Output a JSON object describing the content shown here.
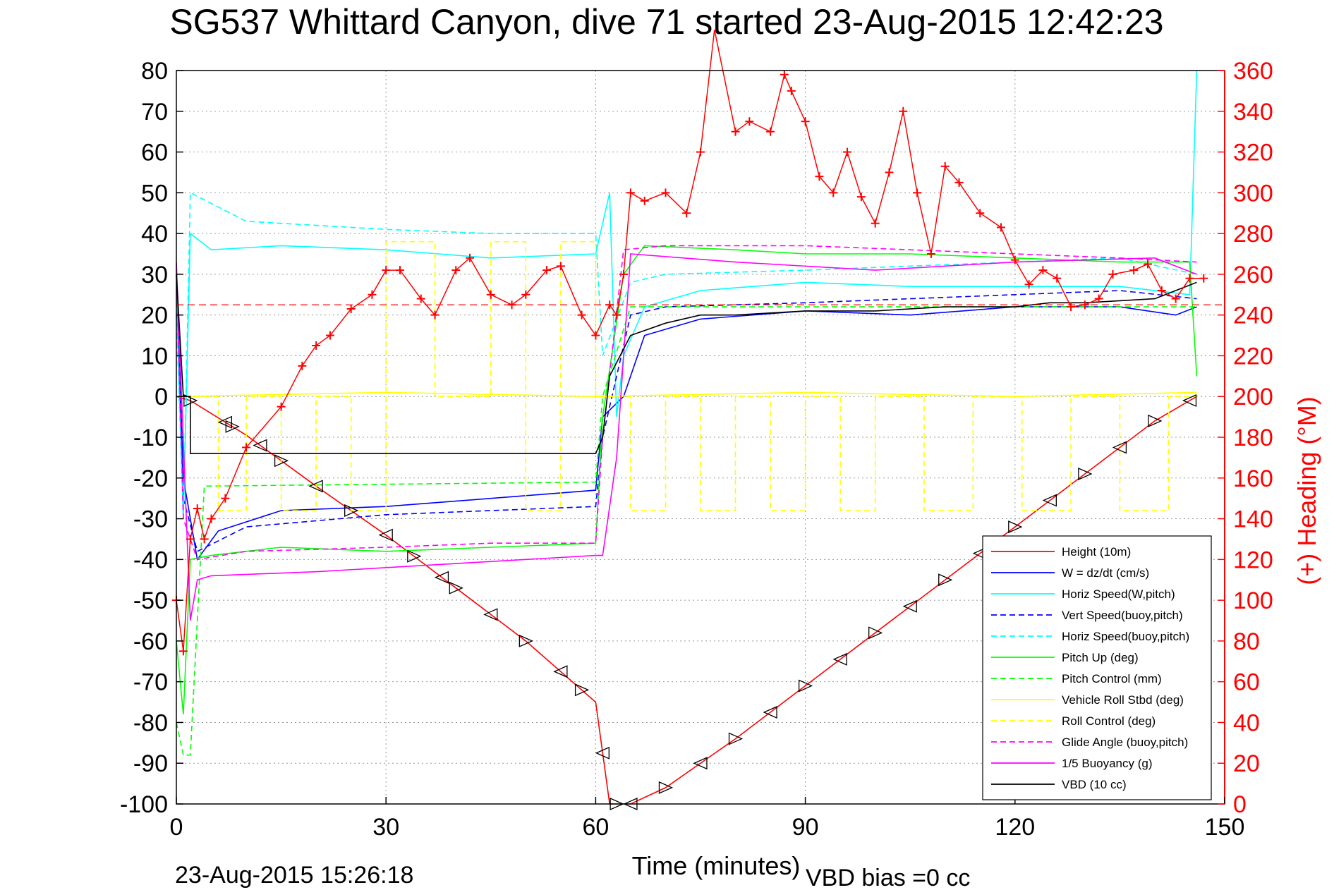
{
  "chart_data": {
    "type": "line",
    "title": "SG537 Whittard Canyon, dive 71 started 23-Aug-2015 12:42:23",
    "footer_left": "23-Aug-2015 15:26:18",
    "footer_right": "VBD bias =0 cc",
    "xlabel": "Time (minutes)",
    "ylabel_right": "(+) Heading (°M)",
    "xlim": [
      0,
      150
    ],
    "ylim": [
      -100,
      80
    ],
    "ylim_right": [
      0,
      360
    ],
    "x_ticks": [
      "0",
      "30",
      "60",
      "90",
      "120",
      "150"
    ],
    "y_ticks": [
      "80",
      "70",
      "60",
      "50",
      "40",
      "30",
      "20",
      "10",
      "0",
      "-10",
      "-20",
      "-30",
      "-40",
      "-50",
      "-60",
      "-70",
      "-80",
      "-90",
      "-100"
    ],
    "y_ticks_right": [
      "360",
      "340",
      "320",
      "300",
      "280",
      "260",
      "240",
      "220",
      "200",
      "180",
      "160",
      "140",
      "120",
      "100",
      "80",
      "60",
      "40",
      "20",
      "0"
    ],
    "grid": true,
    "legend_position": "bottom-right",
    "legend": [
      {
        "label": "Height (10m)",
        "color": "#ff0000",
        "dash": false
      },
      {
        "label": "W = dz/dt (cm/s)",
        "color": "#0000ff",
        "dash": false
      },
      {
        "label": "Horiz Speed(W,pitch)",
        "color": "#00ffff",
        "dash": false
      },
      {
        "label": "Vert Speed(buoy,pitch)",
        "color": "#0000ff",
        "dash": true
      },
      {
        "label": "Horiz Speed(buoy,pitch)",
        "color": "#00ffff",
        "dash": true
      },
      {
        "label": "Pitch Up (deg)",
        "color": "#00ff00",
        "dash": false
      },
      {
        "label": "Pitch Control (mm)",
        "color": "#00ff00",
        "dash": true
      },
      {
        "label": "Vehicle Roll Stbd (deg)",
        "color": "#ffff00",
        "dash": false
      },
      {
        "label": "Roll Control (deg)",
        "color": "#ffff00",
        "dash": true
      },
      {
        "label": "Glide Angle (buoy,pitch)",
        "color": "#ff00ff",
        "dash": true
      },
      {
        "label": "1/5 Buoyancy (g)",
        "color": "#ff00ff",
        "dash": false
      },
      {
        "label": "VBD (10 cc)",
        "color": "#000000",
        "dash": false
      }
    ],
    "series": [
      {
        "name": "Height (10m)",
        "color": "#ff0000",
        "x": [
          0,
          2,
          10,
          20,
          30,
          40,
          50,
          60,
          62,
          65,
          70,
          80,
          90,
          100,
          110,
          120,
          130,
          140,
          146
        ],
        "y": [
          0,
          -1,
          -9.5,
          -22,
          -34,
          -47,
          -60,
          -75,
          -100,
          -100,
          -96,
          -84,
          -71,
          -58,
          -45,
          -32,
          -19,
          -6,
          0
        ]
      },
      {
        "name": "W = dz/dt (cm/s)",
        "color": "#0000ff",
        "x": [
          0,
          1,
          3,
          6,
          15,
          30,
          45,
          60,
          61,
          64,
          67,
          75,
          90,
          105,
          120,
          135,
          143,
          146
        ],
        "y": [
          30,
          -20,
          -40,
          -33,
          -28,
          -27,
          -25,
          -23,
          -5,
          0,
          15,
          19,
          21,
          20,
          22,
          22,
          20,
          22
        ]
      },
      {
        "name": "Horiz Speed(W,pitch)",
        "color": "#00ffff",
        "x": [
          0,
          1,
          2,
          5,
          15,
          30,
          45,
          60,
          62,
          63,
          64,
          67,
          75,
          90,
          105,
          120,
          135,
          145,
          146
        ],
        "y": [
          25,
          -30,
          40,
          36,
          37,
          36,
          34,
          35,
          50,
          -5,
          10,
          22,
          26,
          28,
          27,
          27,
          27,
          25,
          80
        ]
      },
      {
        "name": "Vert Speed(buoy,pitch)",
        "color": "#0000ff",
        "dash": true,
        "x": [
          0,
          1,
          3,
          10,
          30,
          45,
          60,
          61,
          65,
          70,
          90,
          105,
          120,
          135,
          146
        ],
        "y": [
          20,
          -25,
          -38,
          -32,
          -29,
          -28,
          -27,
          -10,
          20,
          22,
          23,
          24,
          25,
          26,
          24
        ]
      },
      {
        "name": "Horiz Speed(buoy,pitch)",
        "color": "#00ffff",
        "dash": true,
        "x": [
          0,
          1,
          2,
          10,
          30,
          45,
          60,
          61,
          65,
          70,
          90,
          105,
          120,
          135,
          146
        ],
        "y": [
          20,
          -30,
          50,
          43,
          41,
          40,
          40,
          10,
          28,
          30,
          31,
          32,
          33,
          34,
          30
        ]
      },
      {
        "name": "Pitch Up (deg)",
        "color": "#00ff00",
        "x": [
          0,
          1,
          2,
          5,
          15,
          30,
          45,
          60,
          61,
          64,
          67,
          80,
          90,
          105,
          120,
          135,
          145,
          146
        ],
        "y": [
          -60,
          -78,
          -40,
          -39,
          -37,
          -38,
          -37,
          -36,
          -5,
          30,
          37,
          36,
          35,
          35,
          34,
          33,
          33,
          5
        ]
      },
      {
        "name": "Pitch Control (mm)",
        "color": "#00ff00",
        "dash": true,
        "x": [
          0,
          1,
          2,
          4,
          60,
          61,
          65,
          90,
          146
        ],
        "y": [
          -80,
          -88,
          -88,
          -22,
          -21,
          0,
          22,
          22,
          22
        ]
      },
      {
        "name": "Vehicle Roll Stbd (deg)",
        "color": "#ffff00",
        "x": [
          0,
          30,
          60,
          90,
          120,
          146
        ],
        "y": [
          0,
          1,
          0,
          1,
          0,
          1
        ]
      },
      {
        "name": "Roll Control (deg)",
        "color": "#ffff00",
        "dash": true,
        "x": [
          0,
          6,
          6,
          10,
          10,
          15,
          15,
          20,
          20,
          25,
          25,
          30,
          30,
          37,
          37,
          45,
          45,
          50,
          50,
          55,
          55,
          60,
          60,
          65,
          65,
          70,
          70,
          75,
          75,
          80,
          80,
          85,
          85,
          90,
          90,
          95,
          95,
          100,
          100,
          107,
          107,
          114,
          114,
          121,
          121,
          128,
          128,
          135,
          135,
          142,
          142,
          146
        ],
        "y": [
          0,
          0,
          -28,
          -28,
          0,
          0,
          -28,
          -28,
          0,
          0,
          -28,
          -28,
          38,
          38,
          0,
          0,
          38,
          38,
          -28,
          -28,
          38,
          38,
          0,
          0,
          -28,
          -28,
          0,
          0,
          -28,
          -28,
          0,
          0,
          -28,
          -28,
          0,
          0,
          -28,
          -28,
          0,
          0,
          -28,
          -28,
          0,
          0,
          -28,
          -28,
          0,
          0,
          -28,
          -28,
          0,
          0
        ]
      },
      {
        "name": "Glide Angle (buoy,pitch)",
        "color": "#ff00ff",
        "dash": true,
        "x": [
          0,
          1,
          3,
          10,
          30,
          45,
          60,
          61,
          64,
          70,
          90,
          105,
          120,
          135,
          146
        ],
        "y": [
          32,
          -30,
          -40,
          -38,
          -37,
          -36,
          -36,
          -10,
          36,
          37,
          37,
          36,
          35,
          34,
          33
        ]
      },
      {
        "name": "1/5 Buoyancy (g)",
        "color": "#ff00ff",
        "x": [
          0,
          2,
          3,
          5,
          20,
          40,
          60,
          61,
          63,
          65,
          80,
          100,
          120,
          140,
          146
        ],
        "y": [
          33,
          -55,
          -45,
          -44,
          -43,
          -41,
          -39,
          -39,
          -15,
          35,
          33,
          31,
          33,
          34,
          30
        ]
      },
      {
        "name": "VBD (10 cc)",
        "color": "#000000",
        "x": [
          0,
          1,
          2,
          2,
          60,
          61,
          62,
          65,
          70,
          75,
          80,
          90,
          100,
          110,
          120,
          125,
          130,
          140,
          146
        ],
        "y": [
          30,
          0,
          0,
          -14,
          -14,
          -10,
          5,
          15,
          18,
          20,
          20,
          21,
          21,
          22,
          22,
          23,
          23,
          24,
          28
        ]
      },
      {
        "name": "Heading",
        "axis": "right",
        "color": "#ff0000",
        "marker": "+",
        "x": [
          0,
          1,
          2,
          3,
          4,
          5,
          7,
          10,
          15,
          18,
          20,
          22,
          25,
          28,
          30,
          32,
          35,
          37,
          40,
          42,
          45,
          48,
          50,
          53,
          55,
          58,
          60,
          62,
          63,
          64,
          65,
          67,
          70,
          73,
          75,
          77,
          80,
          82,
          85,
          87,
          88,
          90,
          92,
          94,
          96,
          98,
          100,
          102,
          104,
          106,
          108,
          110,
          112,
          115,
          118,
          120,
          122,
          124,
          126,
          128,
          130,
          132,
          134,
          137,
          139,
          141,
          143,
          145,
          147
        ],
        "y": [
          100,
          75,
          130,
          145,
          130,
          140,
          150,
          175,
          195,
          215,
          225,
          230,
          243,
          250,
          262,
          262,
          248,
          240,
          262,
          268,
          250,
          245,
          250,
          262,
          264,
          240,
          230,
          245,
          240,
          260,
          300,
          296,
          300,
          290,
          320,
          380,
          330,
          335,
          330,
          358,
          350,
          335,
          308,
          300,
          320,
          298,
          285,
          310,
          340,
          300,
          270,
          313,
          305,
          290,
          283,
          267,
          255,
          262,
          258,
          244,
          245,
          248,
          260,
          262,
          265,
          252,
          248,
          258,
          258
        ]
      }
    ],
    "heading_mean_line": {
      "axis": "right",
      "y": 245,
      "color": "#ff0000",
      "dash": true
    },
    "triangle_markers": {
      "series": "Height (10m)",
      "x": [
        2,
        7,
        8,
        12,
        15,
        20,
        25,
        30,
        34,
        38,
        40,
        45,
        50,
        55,
        58,
        61,
        63,
        65,
        70,
        75,
        80,
        85,
        90,
        95,
        100,
        105,
        110,
        115,
        120,
        125,
        130,
        135,
        140,
        145
      ]
    }
  }
}
